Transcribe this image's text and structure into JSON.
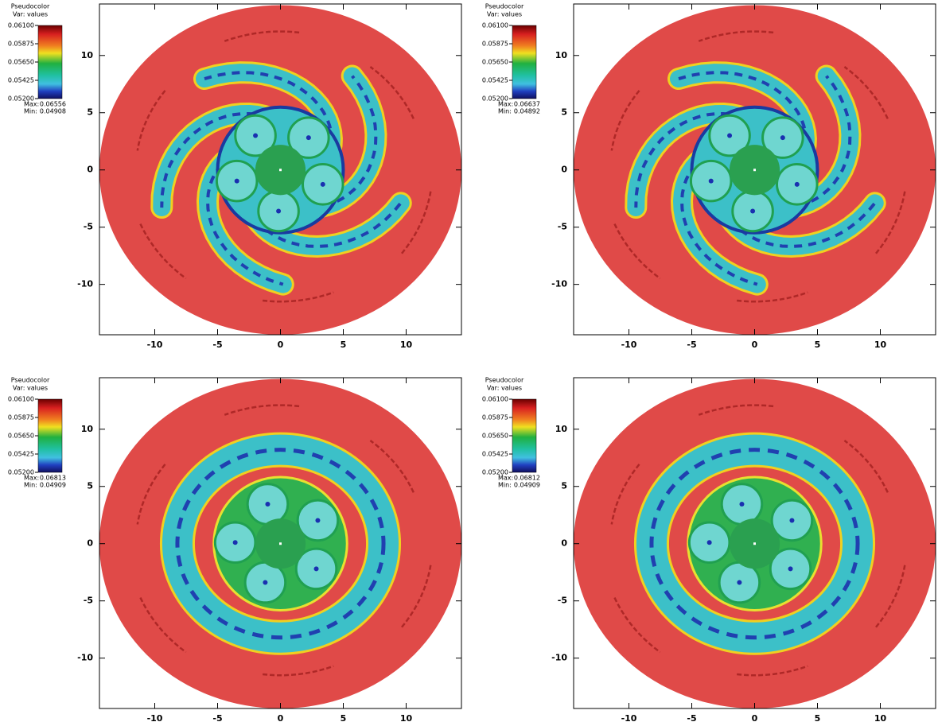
{
  "chart_data": [
    {
      "type": "pseudocolor",
      "legend_title": "Pseudocolor",
      "variable": "Var: values",
      "clim": [
        0.052,
        0.061
      ],
      "colorbar_ticks": [
        {
          "value": 0.061,
          "label": "0.06100"
        },
        {
          "value": 0.05875,
          "label": "0.05875"
        },
        {
          "value": 0.0565,
          "label": "0.05650"
        },
        {
          "value": 0.05425,
          "label": "0.05425"
        },
        {
          "value": 0.052,
          "label": "0.05200"
        }
      ],
      "max_label": "Max:",
      "max": 0.06556,
      "min_label": "Min:",
      "min": 0.04908,
      "xlim": [
        -14.4,
        14.4
      ],
      "ylim": [
        -14.4,
        14.5
      ],
      "xticks": [
        -10,
        -5,
        0,
        5,
        10
      ],
      "yticks": [
        -10,
        -5,
        0,
        5,
        10
      ]
    },
    {
      "type": "pseudocolor",
      "legend_title": "Pseudocolor",
      "variable": "Var: values",
      "clim": [
        0.052,
        0.061
      ],
      "colorbar_ticks": [
        {
          "value": 0.061,
          "label": "0.06100"
        },
        {
          "value": 0.05875,
          "label": "0.05875"
        },
        {
          "value": 0.0565,
          "label": "0.05650"
        },
        {
          "value": 0.05425,
          "label": "0.05425"
        },
        {
          "value": 0.052,
          "label": "0.05200"
        }
      ],
      "max_label": "Max:",
      "max": 0.06637,
      "min_label": "Min:",
      "min": 0.04892,
      "xlim": [
        -14.4,
        14.4
      ],
      "ylim": [
        -14.4,
        14.5
      ],
      "xticks": [
        -10,
        -5,
        0,
        5,
        10
      ],
      "yticks": [
        -10,
        -5,
        0,
        5,
        10
      ]
    },
    {
      "type": "pseudocolor",
      "legend_title": "Pseudocolor",
      "variable": "Var: values",
      "clim": [
        0.052,
        0.061
      ],
      "colorbar_ticks": [
        {
          "value": 0.061,
          "label": "0.06100"
        },
        {
          "value": 0.05875,
          "label": "0.05875"
        },
        {
          "value": 0.0565,
          "label": "0.05650"
        },
        {
          "value": 0.05425,
          "label": "0.05425"
        },
        {
          "value": 0.052,
          "label": "0.05200"
        }
      ],
      "max_label": "Max:",
      "max": 0.06813,
      "min_label": "Min:",
      "min": 0.04909,
      "xlim": [
        -14.4,
        14.4
      ],
      "ylim": [
        -14.4,
        14.5
      ],
      "xticks": [
        -10,
        -5,
        0,
        5,
        10
      ],
      "yticks": [
        -10,
        -5,
        0,
        5,
        10
      ]
    },
    {
      "type": "pseudocolor",
      "legend_title": "Pseudocolor",
      "variable": "Var: values",
      "clim": [
        0.052,
        0.061
      ],
      "colorbar_ticks": [
        {
          "value": 0.061,
          "label": "0.06100"
        },
        {
          "value": 0.05875,
          "label": "0.05875"
        },
        {
          "value": 0.0565,
          "label": "0.05650"
        },
        {
          "value": 0.05425,
          "label": "0.05425"
        },
        {
          "value": 0.052,
          "label": "0.05200"
        }
      ],
      "max_label": "Max:",
      "max": 0.06812,
      "min_label": "Min:",
      "min": 0.04909,
      "xlim": [
        -14.4,
        14.4
      ],
      "ylim": [
        -14.4,
        14.5
      ],
      "xticks": [
        -10,
        -5,
        0,
        5,
        10
      ],
      "yticks": [
        -10,
        -5,
        0,
        5,
        10
      ]
    }
  ]
}
